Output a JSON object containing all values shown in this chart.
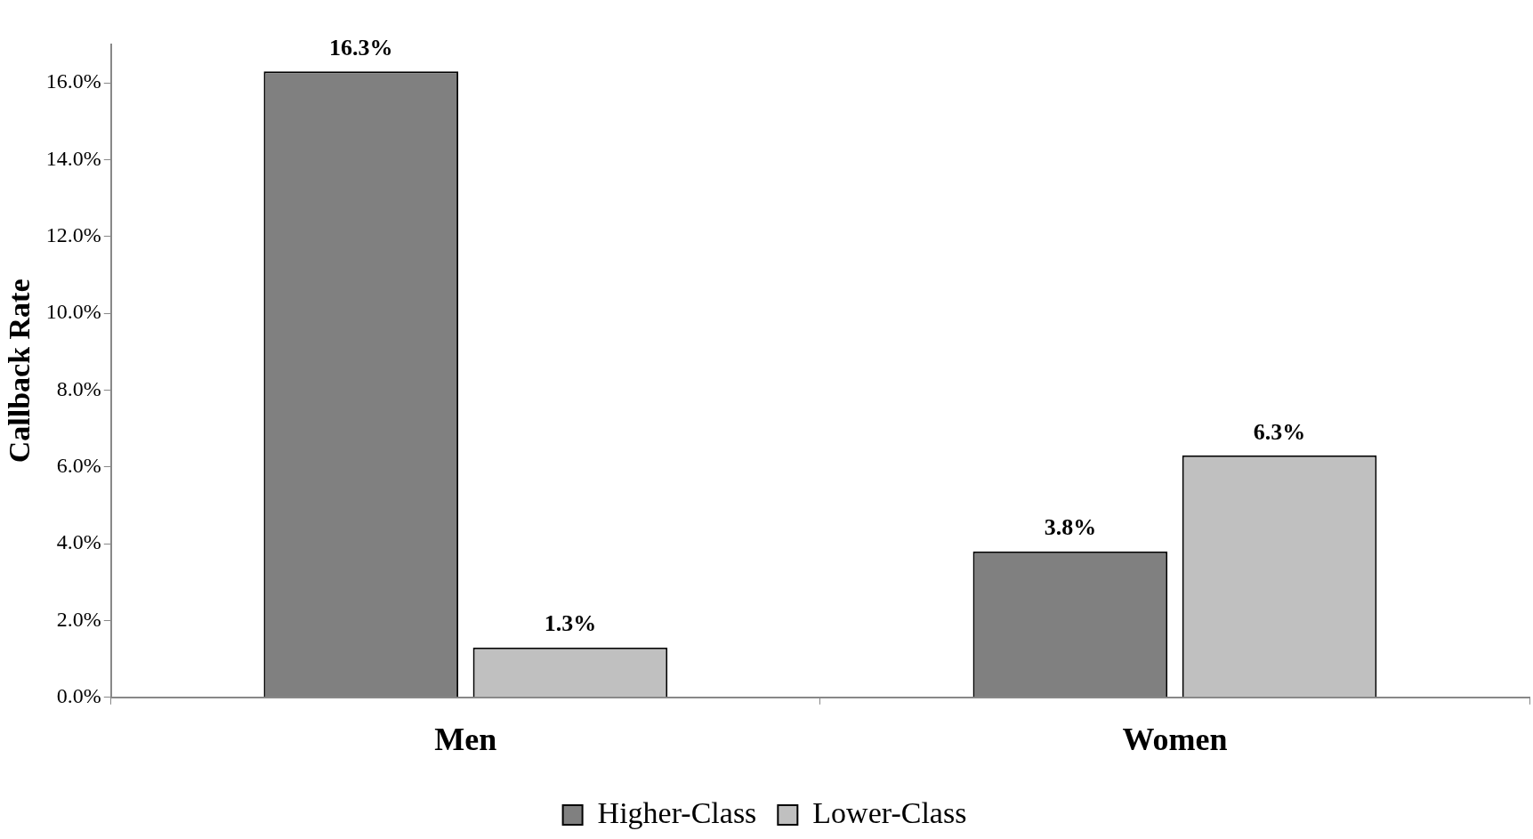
{
  "chart_data": {
    "type": "bar",
    "ylabel": "Callback Rate",
    "categories": [
      "Men",
      "Women"
    ],
    "series": [
      {
        "name": "Higher-Class",
        "color": "#808080",
        "values": [
          16.3,
          3.8
        ],
        "value_labels": [
          "16.3%",
          "3.8%"
        ]
      },
      {
        "name": "Lower-Class",
        "color": "#c0c0c0",
        "values": [
          1.3,
          6.3
        ],
        "value_labels": [
          "1.3%",
          "6.3%"
        ]
      }
    ],
    "ylim": [
      0,
      17
    ],
    "yticks": [
      {
        "value": 0,
        "label": "0.0%"
      },
      {
        "value": 2,
        "label": "2.0%"
      },
      {
        "value": 4,
        "label": "4.0%"
      },
      {
        "value": 6,
        "label": "6.0%"
      },
      {
        "value": 8,
        "label": "8.0%"
      },
      {
        "value": 10,
        "label": "10.0%"
      },
      {
        "value": 12,
        "label": "12.0%"
      },
      {
        "value": 14,
        "label": "14.0%"
      },
      {
        "value": 16,
        "label": "16.0%"
      }
    ],
    "grid": false,
    "legend": "bottom"
  }
}
